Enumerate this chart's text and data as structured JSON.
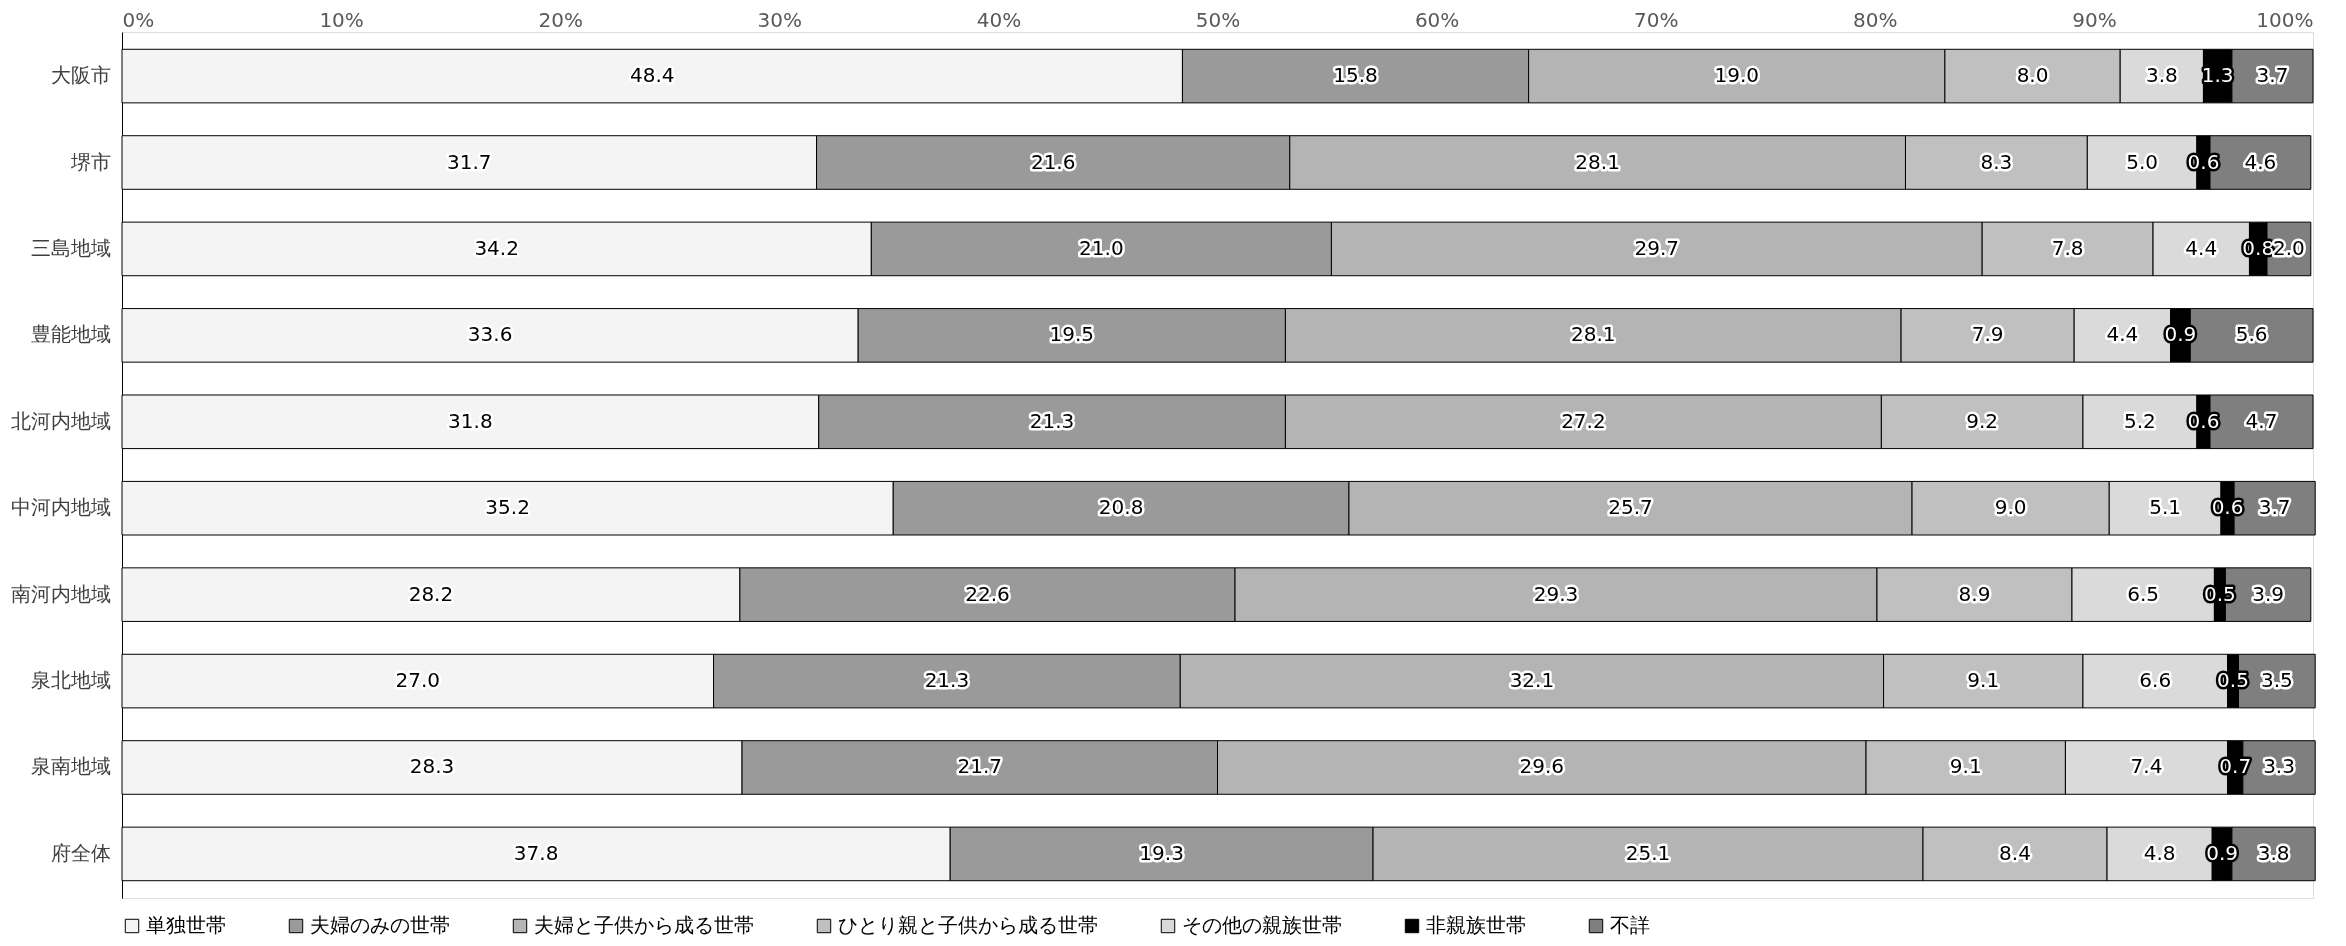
{
  "chart_data": {
    "type": "bar",
    "orientation": "horizontal",
    "stacked": true,
    "legend": "bottom",
    "grid": false,
    "categories": [
      "大阪市",
      "堺市",
      "三島地域",
      "豊能地域",
      "北河内地域",
      "中河内地域",
      "南河内地域",
      "泉北地域",
      "泉南地域",
      "府全体"
    ],
    "xlim": [
      0,
      100
    ],
    "xticks": [
      {
        "value": 0,
        "label": "0%"
      },
      {
        "value": 10,
        "label": "10%"
      },
      {
        "value": 20,
        "label": "20%"
      },
      {
        "value": 30,
        "label": "30%"
      },
      {
        "value": 40,
        "label": "40%"
      },
      {
        "value": 50,
        "label": "50%"
      },
      {
        "value": 60,
        "label": "60%"
      },
      {
        "value": 70,
        "label": "70%"
      },
      {
        "value": 80,
        "label": "80%"
      },
      {
        "value": 90,
        "label": "90%"
      },
      {
        "value": 100,
        "label": "100%"
      }
    ],
    "series": [
      {
        "name": "単独世帯",
        "color": "#f4f4f4",
        "values": [
          48.4,
          31.7,
          34.2,
          33.6,
          31.8,
          35.2,
          28.2,
          27.0,
          28.3,
          37.8
        ],
        "value_labels": [
          "48.4",
          "31.7",
          "34.2",
          "33.6",
          "31.8",
          "35.2",
          "28.2",
          "27.0",
          "28.3",
          "37.8"
        ]
      },
      {
        "name": "夫婦のみの世帯",
        "color": "#9a9a9a",
        "values": [
          15.8,
          21.6,
          21.0,
          19.5,
          21.3,
          20.8,
          22.6,
          21.3,
          21.7,
          19.3
        ],
        "value_labels": [
          "15.8",
          "21.6",
          "21.0",
          "19.5",
          "21.3",
          "20.8",
          "22.6",
          "21.3",
          "21.7",
          "19.3"
        ]
      },
      {
        "name": "夫婦と子供から成る世帯",
        "color": "#b4b4b4",
        "values": [
          19.0,
          28.1,
          29.7,
          28.1,
          27.2,
          25.7,
          29.3,
          32.1,
          29.6,
          25.1
        ],
        "value_labels": [
          "19.0",
          "28.1",
          "29.7",
          "28.1",
          "27.2",
          "25.7",
          "29.3",
          "32.1",
          "29.6",
          "25.1"
        ]
      },
      {
        "name": "ひとり親と子供から成る世帯",
        "color": "#c0c0c0",
        "values": [
          8.0,
          8.3,
          7.8,
          7.9,
          9.2,
          9.0,
          8.9,
          9.1,
          9.1,
          8.4
        ],
        "value_labels": [
          "8.0",
          "8.3",
          "7.8",
          "7.9",
          "9.2",
          "9.0",
          "8.9",
          "9.1",
          "9.1",
          "8.4"
        ]
      },
      {
        "name": "その他の親族世帯",
        "color": "#dadada",
        "values": [
          3.8,
          5.0,
          4.4,
          4.4,
          5.2,
          5.1,
          6.5,
          6.6,
          7.4,
          4.8
        ],
        "value_labels": [
          "3.8",
          "5.0",
          "4.4",
          "4.4",
          "5.2",
          "5.1",
          "6.5",
          "6.6",
          "7.4",
          "4.8"
        ]
      },
      {
        "name": "非親族世帯",
        "color": "#000000",
        "values": [
          1.3,
          0.6,
          0.8,
          0.9,
          0.6,
          0.6,
          0.5,
          0.5,
          0.7,
          0.9
        ],
        "value_labels": [
          "1.3",
          "0.6",
          "0.8",
          "0.9",
          "0.6",
          "0.6",
          "0.5",
          "0.5",
          "0.7",
          "0.9"
        ]
      },
      {
        "name": "不詳",
        "color": "#7f7f7f",
        "values": [
          3.7,
          4.6,
          2.0,
          5.6,
          4.7,
          3.7,
          3.9,
          3.5,
          3.3,
          3.8
        ],
        "value_labels": [
          "3.7",
          "4.6",
          "2.0",
          "5.6",
          "4.7",
          "3.7",
          "3.9",
          "3.5",
          "3.3",
          "3.8"
        ]
      }
    ]
  }
}
